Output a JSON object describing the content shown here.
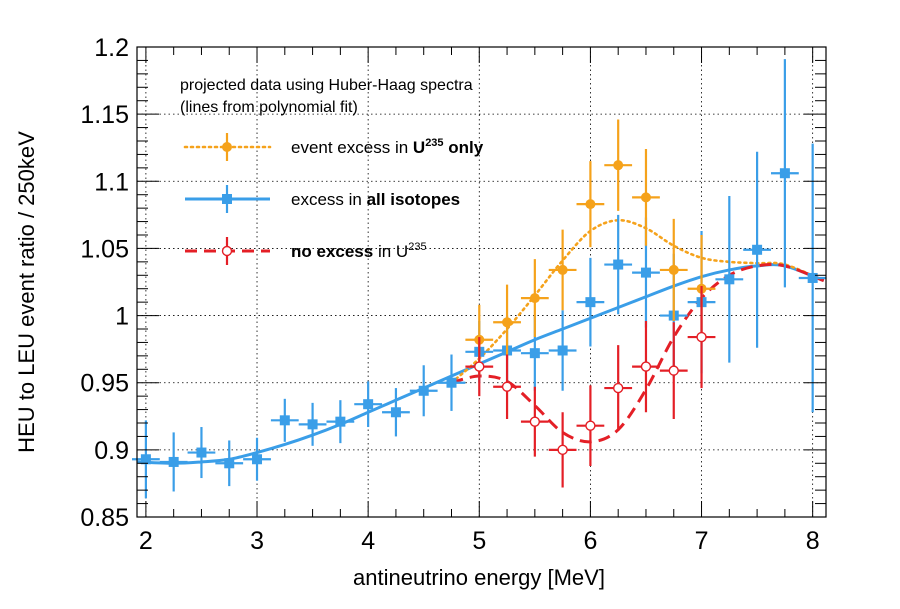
{
  "chart_data": {
    "type": "scatter",
    "title": "",
    "xlabel": "antineutrino energy [MeV]",
    "ylabel": "HEU to LEU event ratio / 250keV",
    "xlim": [
      1.92,
      8.12
    ],
    "ylim": [
      0.85,
      1.2
    ],
    "x_ticks": [
      2,
      3,
      4,
      5,
      6,
      7,
      8
    ],
    "x_tick_labels": [
      "2",
      "3",
      "4",
      "5",
      "6",
      "7",
      "8"
    ],
    "y_ticks": [
      0.85,
      0.9,
      0.95,
      1.0,
      1.05,
      1.1,
      1.15,
      1.2
    ],
    "y_tick_labels": [
      "0.85",
      "0.9",
      "0.95",
      "1",
      "1.05",
      "1.1",
      "1.15",
      "1.2"
    ],
    "grid": true,
    "legend": {
      "header_line1": "projected data using Huber-Haag spectra",
      "header_line2": "(lines from polynomial fit)",
      "items": [
        {
          "pre": "event excess in ",
          "bold": "U",
          "bold_sup": "235",
          "bold_post": " only",
          "post": "",
          "post_sup": ""
        },
        {
          "pre": "excess in ",
          "bold": "all isotopes",
          "bold_sup": "",
          "bold_post": "",
          "post": "",
          "post_sup": ""
        },
        {
          "pre": "",
          "bold": "no excess",
          "bold_sup": "",
          "bold_post": "",
          "post": " in U",
          "post_sup": "235"
        }
      ]
    },
    "series": [
      {
        "name": "event excess in U235 only",
        "color": "#F5A21B",
        "marker": "circle-filled",
        "line_style": "dotted",
        "points": [
          {
            "x": 5.0,
            "y": 0.982,
            "err": 0.026
          },
          {
            "x": 5.25,
            "y": 0.995,
            "err": 0.028
          },
          {
            "x": 5.5,
            "y": 1.013,
            "err": 0.029
          },
          {
            "x": 5.75,
            "y": 1.034,
            "err": 0.03
          },
          {
            "x": 6.0,
            "y": 1.083,
            "err": 0.032
          },
          {
            "x": 6.25,
            "y": 1.112,
            "err": 0.034
          },
          {
            "x": 6.5,
            "y": 1.088,
            "err": 0.036
          },
          {
            "x": 6.75,
            "y": 1.034,
            "err": 0.038
          },
          {
            "x": 7.0,
            "y": 1.02,
            "err": 0.04
          }
        ],
        "fit": [
          {
            "x": 4.75,
            "y": 0.95
          },
          {
            "x": 5.0,
            "y": 0.968
          },
          {
            "x": 5.25,
            "y": 0.99
          },
          {
            "x": 5.5,
            "y": 1.015
          },
          {
            "x": 5.75,
            "y": 1.041
          },
          {
            "x": 6.0,
            "y": 1.063
          },
          {
            "x": 6.25,
            "y": 1.071
          },
          {
            "x": 6.5,
            "y": 1.065
          },
          {
            "x": 6.75,
            "y": 1.052
          },
          {
            "x": 7.0,
            "y": 1.043
          },
          {
            "x": 7.25,
            "y": 1.04
          },
          {
            "x": 7.5,
            "y": 1.039
          },
          {
            "x": 7.75,
            "y": 1.038
          },
          {
            "x": 8.1,
            "y": 1.026
          }
        ]
      },
      {
        "name": "excess in all isotopes",
        "color": "#3A9EE8",
        "marker": "square-filled",
        "line_style": "solid",
        "points": [
          {
            "x": 2.0,
            "y": 0.893,
            "err": 0.029
          },
          {
            "x": 2.25,
            "y": 0.891,
            "err": 0.022
          },
          {
            "x": 2.5,
            "y": 0.898,
            "err": 0.019
          },
          {
            "x": 2.75,
            "y": 0.89,
            "err": 0.017
          },
          {
            "x": 3.0,
            "y": 0.893,
            "err": 0.016
          },
          {
            "x": 3.25,
            "y": 0.922,
            "err": 0.016
          },
          {
            "x": 3.5,
            "y": 0.919,
            "err": 0.016
          },
          {
            "x": 3.75,
            "y": 0.921,
            "err": 0.016
          },
          {
            "x": 4.0,
            "y": 0.934,
            "err": 0.017
          },
          {
            "x": 4.25,
            "y": 0.928,
            "err": 0.018
          },
          {
            "x": 4.5,
            "y": 0.944,
            "err": 0.019
          },
          {
            "x": 4.75,
            "y": 0.95,
            "err": 0.021
          },
          {
            "x": 5.0,
            "y": 0.973,
            "err": 0.023
          },
          {
            "x": 5.25,
            "y": 0.974,
            "err": 0.026
          },
          {
            "x": 5.5,
            "y": 0.972,
            "err": 0.028
          },
          {
            "x": 5.75,
            "y": 0.974,
            "err": 0.03
          },
          {
            "x": 6.0,
            "y": 1.01,
            "err": 0.033
          },
          {
            "x": 6.25,
            "y": 1.038,
            "err": 0.037
          },
          {
            "x": 6.5,
            "y": 1.032,
            "err": 0.041
          },
          {
            "x": 6.75,
            "y": 1.0,
            "err": 0.046
          },
          {
            "x": 7.0,
            "y": 1.01,
            "err": 0.053
          },
          {
            "x": 7.25,
            "y": 1.027,
            "err": 0.062
          },
          {
            "x": 7.5,
            "y": 1.049,
            "err": 0.073
          },
          {
            "x": 7.75,
            "y": 1.106,
            "err": 0.085
          },
          {
            "x": 8.0,
            "y": 1.028,
            "err": 0.1
          }
        ],
        "fit": [
          {
            "x": 1.92,
            "y": 0.891
          },
          {
            "x": 2.25,
            "y": 0.89
          },
          {
            "x": 2.5,
            "y": 0.891
          },
          {
            "x": 2.75,
            "y": 0.893
          },
          {
            "x": 3.0,
            "y": 0.898
          },
          {
            "x": 3.25,
            "y": 0.904
          },
          {
            "x": 3.5,
            "y": 0.911
          },
          {
            "x": 3.75,
            "y": 0.919
          },
          {
            "x": 4.0,
            "y": 0.928
          },
          {
            "x": 4.25,
            "y": 0.937
          },
          {
            "x": 4.5,
            "y": 0.946
          },
          {
            "x": 4.75,
            "y": 0.955
          },
          {
            "x": 5.0,
            "y": 0.964
          },
          {
            "x": 5.25,
            "y": 0.973
          },
          {
            "x": 5.5,
            "y": 0.982
          },
          {
            "x": 5.75,
            "y": 0.99
          },
          {
            "x": 6.0,
            "y": 0.998
          },
          {
            "x": 6.25,
            "y": 1.006
          },
          {
            "x": 6.5,
            "y": 1.014
          },
          {
            "x": 6.75,
            "y": 1.022
          },
          {
            "x": 7.0,
            "y": 1.029
          },
          {
            "x": 7.25,
            "y": 1.034
          },
          {
            "x": 7.5,
            "y": 1.037
          },
          {
            "x": 7.75,
            "y": 1.037
          },
          {
            "x": 8.1,
            "y": 1.026
          }
        ]
      },
      {
        "name": "no excess in U235",
        "color": "#E41F26",
        "marker": "circle-open",
        "line_style": "dashed",
        "points": [
          {
            "x": 5.0,
            "y": 0.962,
            "err": 0.022
          },
          {
            "x": 5.25,
            "y": 0.947,
            "err": 0.024
          },
          {
            "x": 5.5,
            "y": 0.921,
            "err": 0.026
          },
          {
            "x": 5.75,
            "y": 0.9,
            "err": 0.028
          },
          {
            "x": 6.0,
            "y": 0.918,
            "err": 0.03
          },
          {
            "x": 6.25,
            "y": 0.946,
            "err": 0.032
          },
          {
            "x": 6.5,
            "y": 0.962,
            "err": 0.034
          },
          {
            "x": 6.75,
            "y": 0.959,
            "err": 0.036
          },
          {
            "x": 7.0,
            "y": 0.984,
            "err": 0.038
          }
        ],
        "fit": [
          {
            "x": 4.75,
            "y": 0.95
          },
          {
            "x": 5.0,
            "y": 0.955
          },
          {
            "x": 5.25,
            "y": 0.951
          },
          {
            "x": 5.5,
            "y": 0.933
          },
          {
            "x": 5.75,
            "y": 0.913
          },
          {
            "x": 6.0,
            "y": 0.906
          },
          {
            "x": 6.25,
            "y": 0.915
          },
          {
            "x": 6.5,
            "y": 0.945
          },
          {
            "x": 6.75,
            "y": 0.984
          },
          {
            "x": 7.0,
            "y": 1.013
          },
          {
            "x": 7.25,
            "y": 1.03
          },
          {
            "x": 7.5,
            "y": 1.037
          },
          {
            "x": 7.75,
            "y": 1.037
          },
          {
            "x": 8.1,
            "y": 1.026
          }
        ]
      }
    ]
  }
}
